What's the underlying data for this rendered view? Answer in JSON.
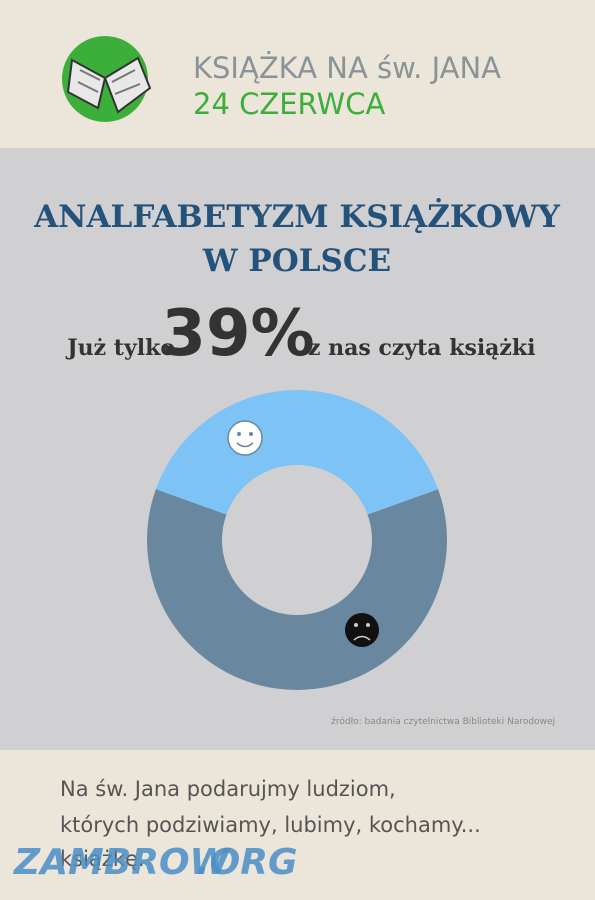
{
  "header": {
    "title": "KSIĄŻKA NA św. JANA",
    "date": "24 CZERWCA"
  },
  "chart_data": {
    "type": "donut",
    "title": [
      "ANALFABETYZM KSIĄŻKOWY",
      "W POLSCE"
    ],
    "headline": {
      "prefix": "Już tylko",
      "suffix": "z nas czyta książki"
    },
    "values": [
      39,
      61
    ],
    "value_labels": [
      "39%",
      null
    ],
    "colors": [
      "#7ec3f5",
      "#6a87a0"
    ],
    "source": "źródło: badania czytelnictwa Biblioteki Narodowej"
  },
  "footer": {
    "lines": [
      "Na św. Jana podarujmy ludziom,",
      "których podziwiamy, lubimy, kochamy...",
      "książkę."
    ]
  },
  "watermark": [
    "ZAMBROW",
    ".ORG"
  ]
}
